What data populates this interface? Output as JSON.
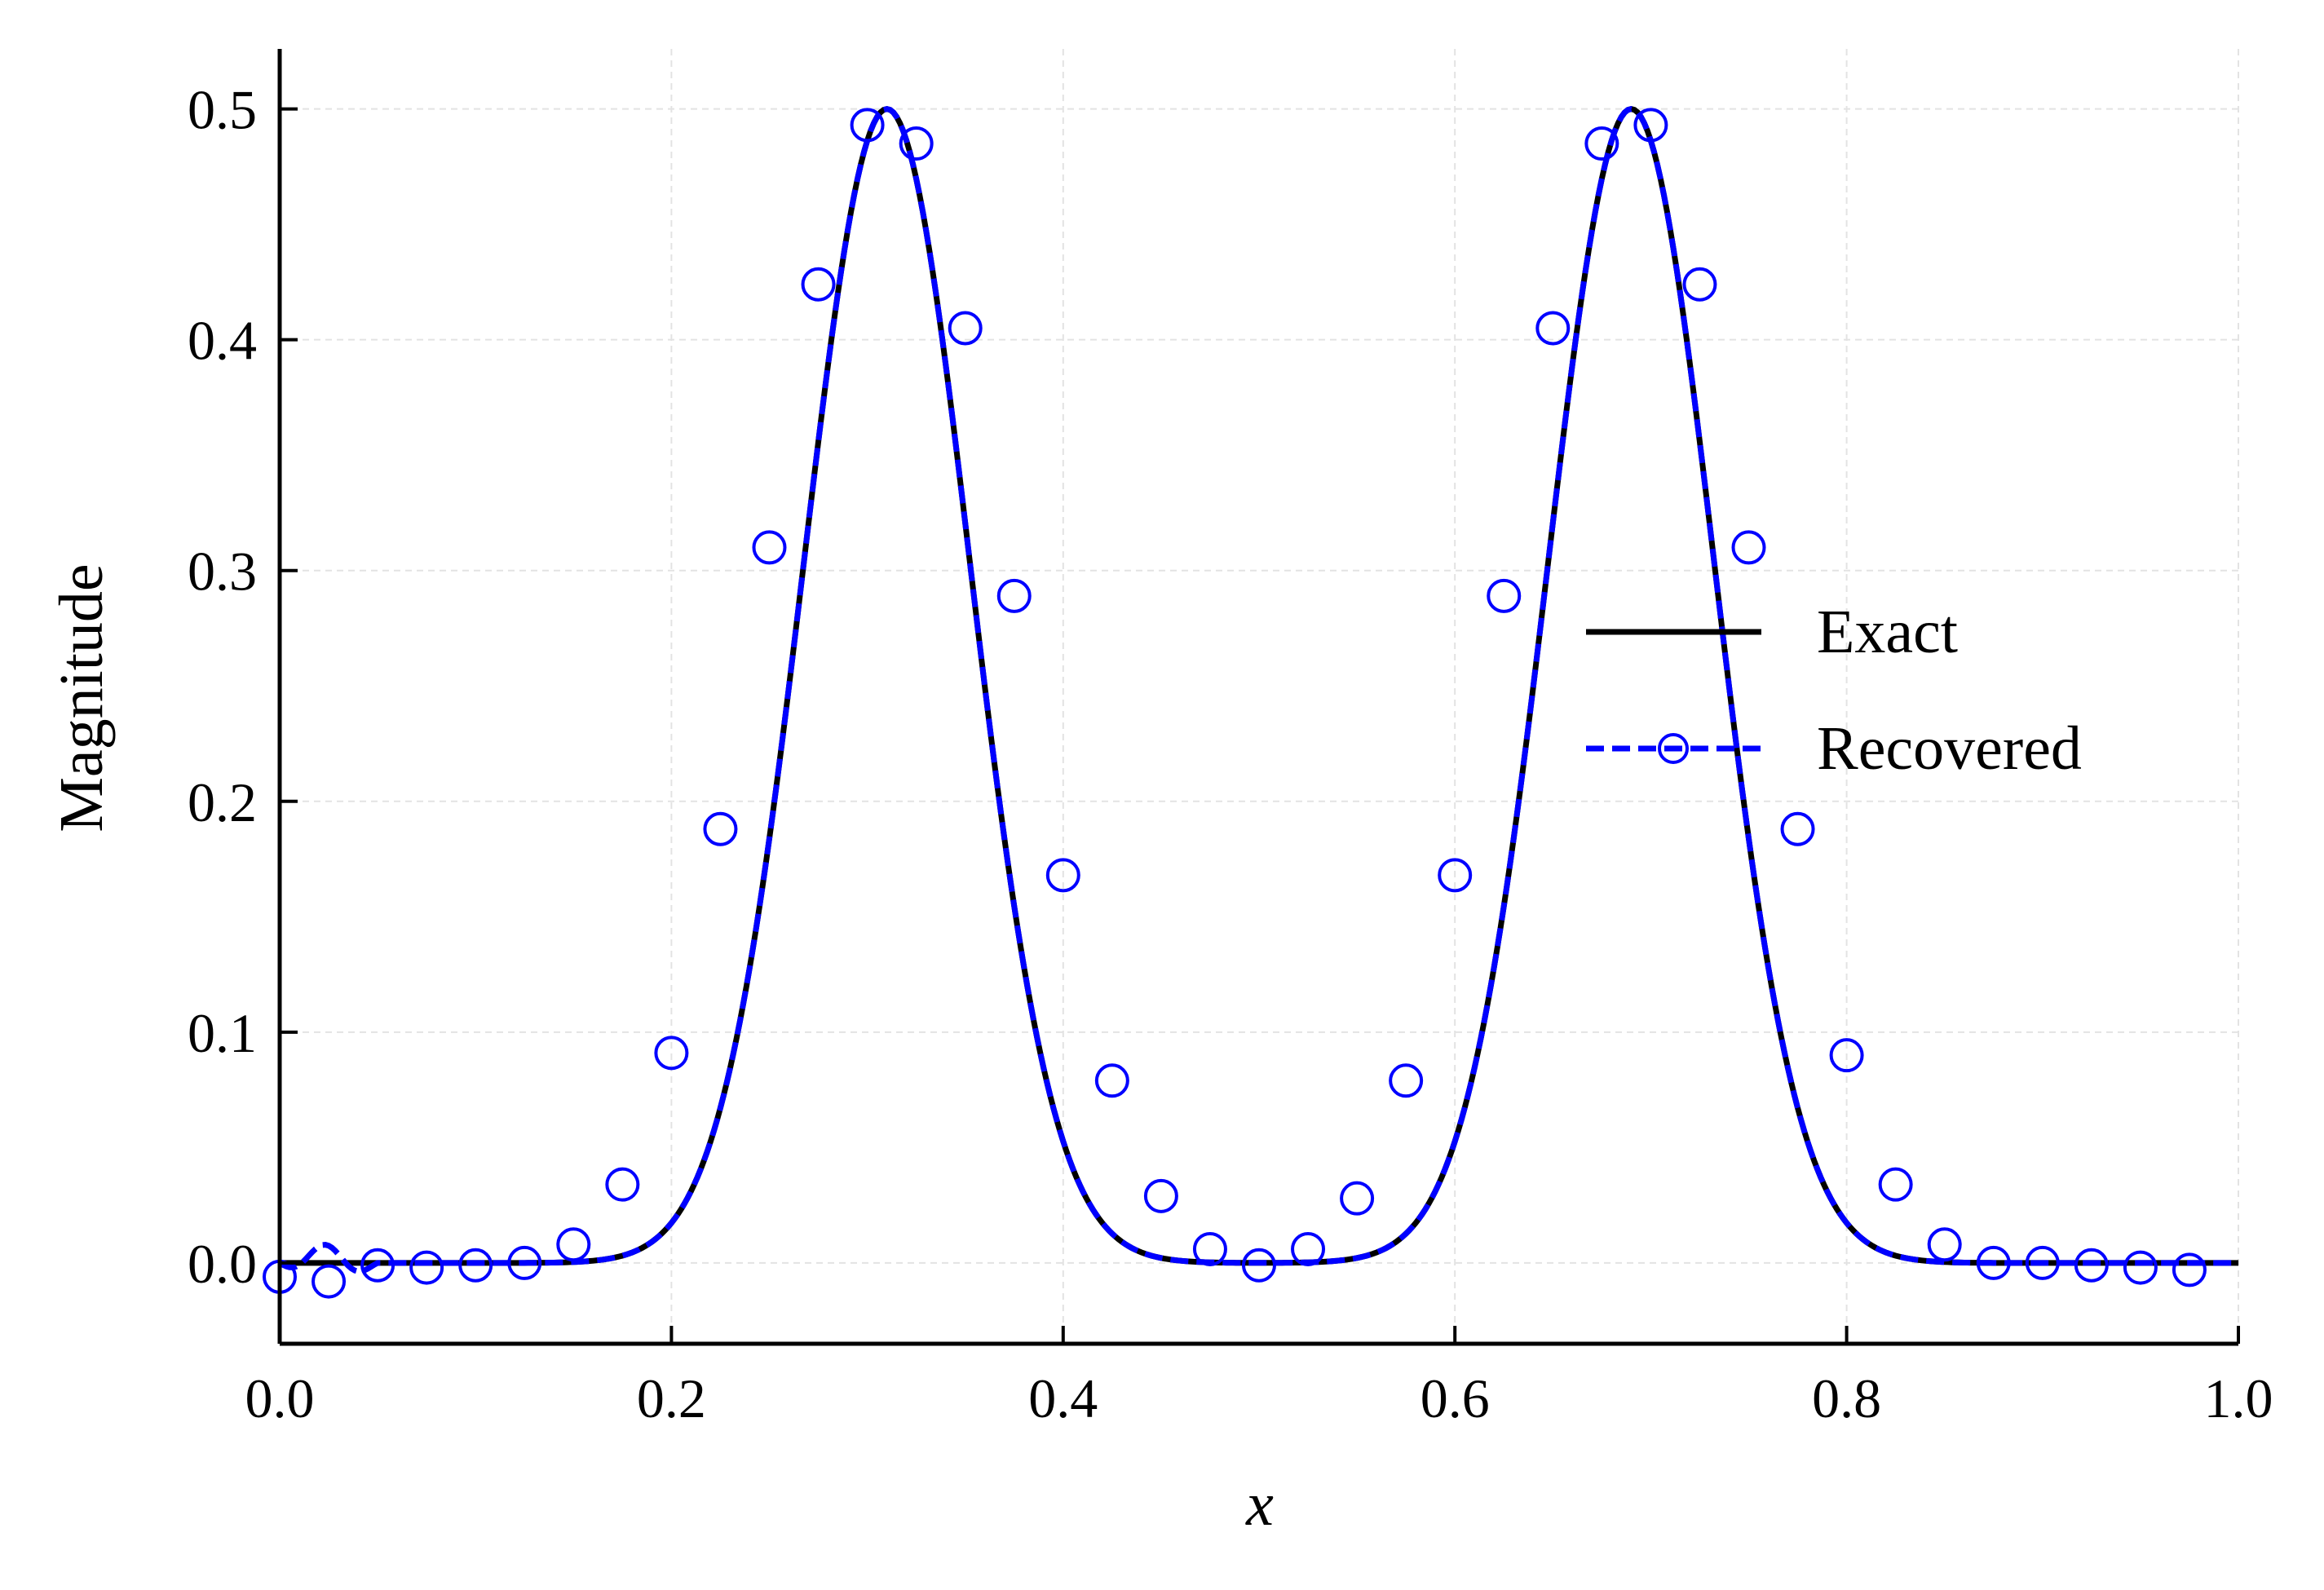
{
  "chart_data": {
    "type": "line",
    "title": "",
    "xlabel": "x",
    "ylabel": "Magnitude",
    "xlim": [
      0.0,
      1.0
    ],
    "ylim": [
      -0.035,
      0.526
    ],
    "xticks": [
      "0.0",
      "0.2",
      "0.4",
      "0.6",
      "0.8",
      "1.0"
    ],
    "yticks": [
      "0.0",
      "0.1",
      "0.2",
      "0.3",
      "0.4",
      "0.5"
    ],
    "grid": true,
    "legend_position": "center-right",
    "exact_peaks": {
      "centers": [
        0.31,
        0.69
      ],
      "amplitude": 0.5,
      "width": 0.06
    },
    "series": [
      {
        "name": "Exact",
        "color": "#000000",
        "style": "solid",
        "x": [
          0.0,
          0.02,
          0.04,
          0.06,
          0.08,
          0.1,
          0.12,
          0.14,
          0.16,
          0.18,
          0.2,
          0.22,
          0.24,
          0.26,
          0.28,
          0.3,
          0.31,
          0.32,
          0.34,
          0.36,
          0.38,
          0.4,
          0.42,
          0.44,
          0.46,
          0.48,
          0.5,
          0.52,
          0.54,
          0.56,
          0.58,
          0.6,
          0.62,
          0.64,
          0.66,
          0.68,
          0.69,
          0.7,
          0.72,
          0.74,
          0.76,
          0.78,
          0.8,
          0.82,
          0.84,
          0.86,
          0.88,
          0.9,
          0.92,
          0.94,
          0.96,
          0.98,
          1.0
        ],
        "y": [
          0.0,
          0.0,
          0.0,
          0.0,
          0.001,
          0.001,
          0.003,
          0.009,
          0.021,
          0.045,
          0.087,
          0.154,
          0.244,
          0.347,
          0.441,
          0.493,
          0.5,
          0.493,
          0.441,
          0.347,
          0.244,
          0.154,
          0.087,
          0.045,
          0.022,
          0.013,
          0.011,
          0.013,
          0.022,
          0.045,
          0.087,
          0.154,
          0.244,
          0.347,
          0.441,
          0.493,
          0.5,
          0.493,
          0.441,
          0.347,
          0.244,
          0.154,
          0.087,
          0.045,
          0.021,
          0.009,
          0.003,
          0.001,
          0.001,
          0.0,
          0.0,
          0.0,
          0.0
        ]
      },
      {
        "name": "Recovered",
        "color": "#0000ff",
        "style": "dashed",
        "marker": "circle-open",
        "x": [
          0.0,
          0.025,
          0.05,
          0.075,
          0.1,
          0.125,
          0.15,
          0.175,
          0.2,
          0.225,
          0.25,
          0.275,
          0.3,
          0.325,
          0.35,
          0.375,
          0.4,
          0.425,
          0.45,
          0.475,
          0.5,
          0.525,
          0.55,
          0.575,
          0.6,
          0.625,
          0.65,
          0.675,
          0.7,
          0.725,
          0.75,
          0.775,
          0.8,
          0.825,
          0.85,
          0.875,
          0.9,
          0.925,
          0.95,
          0.975
        ],
        "y": [
          -0.006,
          -0.008,
          -0.001,
          -0.002,
          -0.001,
          0.0,
          0.008,
          0.034,
          0.091,
          0.188,
          0.31,
          0.424,
          0.493,
          0.485,
          0.405,
          0.289,
          0.168,
          0.079,
          0.029,
          0.006,
          -0.001,
          0.006,
          0.028,
          0.079,
          0.168,
          0.289,
          0.405,
          0.485,
          0.493,
          0.424,
          0.31,
          0.188,
          0.09,
          0.034,
          0.008,
          0.0,
          0.0,
          -0.001,
          -0.002,
          -0.003
        ]
      }
    ]
  }
}
